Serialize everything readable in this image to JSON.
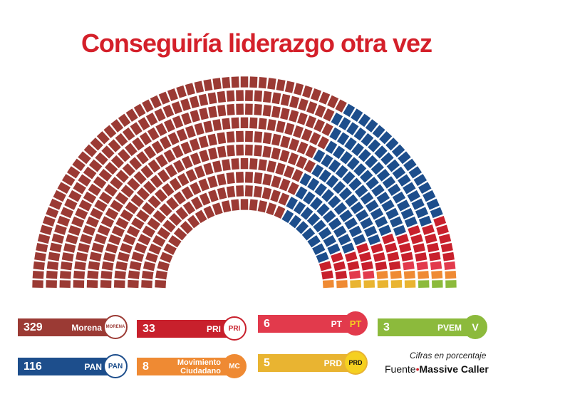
{
  "title": "Conseguiría liderazgo otra vez",
  "chart_data": {
    "type": "hemicycle",
    "title": "Conseguiría liderazgo otra vez",
    "categories": [
      "Morena",
      "PAN",
      "PRI",
      "PT",
      "Movimiento Ciudadano",
      "PRD",
      "PVEM"
    ],
    "values": [
      329,
      116,
      33,
      6,
      8,
      5,
      3
    ],
    "colors": [
      "#9b3a34",
      "#1d4e8c",
      "#c8202c",
      "#e23a4c",
      "#ef8a33",
      "#e9b431",
      "#8cba3c"
    ]
  },
  "legend": [
    {
      "value": "329",
      "name": "Morena",
      "logo": "MORENA"
    },
    {
      "value": "33",
      "name": "PRI",
      "logo": "PRI"
    },
    {
      "value": "6",
      "name": "PT",
      "logo": "PT"
    },
    {
      "value": "3",
      "name": "PVEM",
      "logo": "V"
    },
    {
      "value": "116",
      "name": "PAN",
      "logo": "PAN"
    },
    {
      "value": "8",
      "name": "Movimiento Ciudadano",
      "logo": "MC"
    },
    {
      "value": "5",
      "name": "PRD",
      "logo": "PRD"
    }
  ],
  "note": "Cifras en porcentaje",
  "source_label": "Fuente",
  "source": "Massive Caller"
}
